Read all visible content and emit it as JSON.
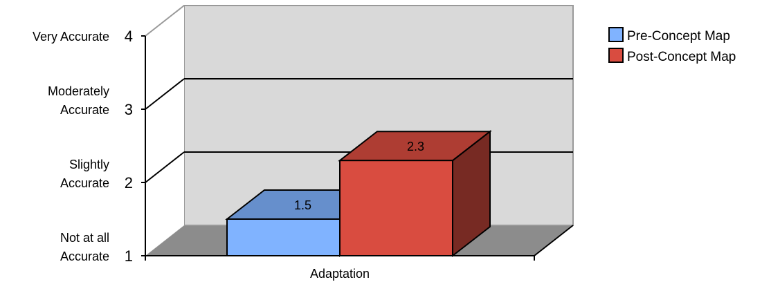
{
  "chart_data": {
    "type": "bar",
    "categories": [
      "Adaptation"
    ],
    "series": [
      {
        "name": "Pre-Concept Map",
        "values": [
          1.5
        ],
        "color": "#80b3ff"
      },
      {
        "name": "Post-Concept Map",
        "values": [
          2.3
        ],
        "color": "#d94c40"
      }
    ],
    "ylim": [
      1,
      4
    ],
    "yticks": [
      1,
      2,
      3,
      4
    ],
    "ytick_labels": [
      "1",
      "2",
      "3",
      "4"
    ],
    "ylevel_labels": [
      {
        "value": 1,
        "lines": [
          "Not at all",
          "Accurate"
        ]
      },
      {
        "value": 2,
        "lines": [
          "Slightly",
          "Accurate"
        ]
      },
      {
        "value": 3,
        "lines": [
          "Moderately",
          "Accurate"
        ]
      },
      {
        "value": 4,
        "lines": [
          "Very Accurate"
        ]
      }
    ],
    "data_labels": [
      "1.5",
      "2.3"
    ],
    "grid": true,
    "three_d": true,
    "legend_position": "top-right"
  }
}
